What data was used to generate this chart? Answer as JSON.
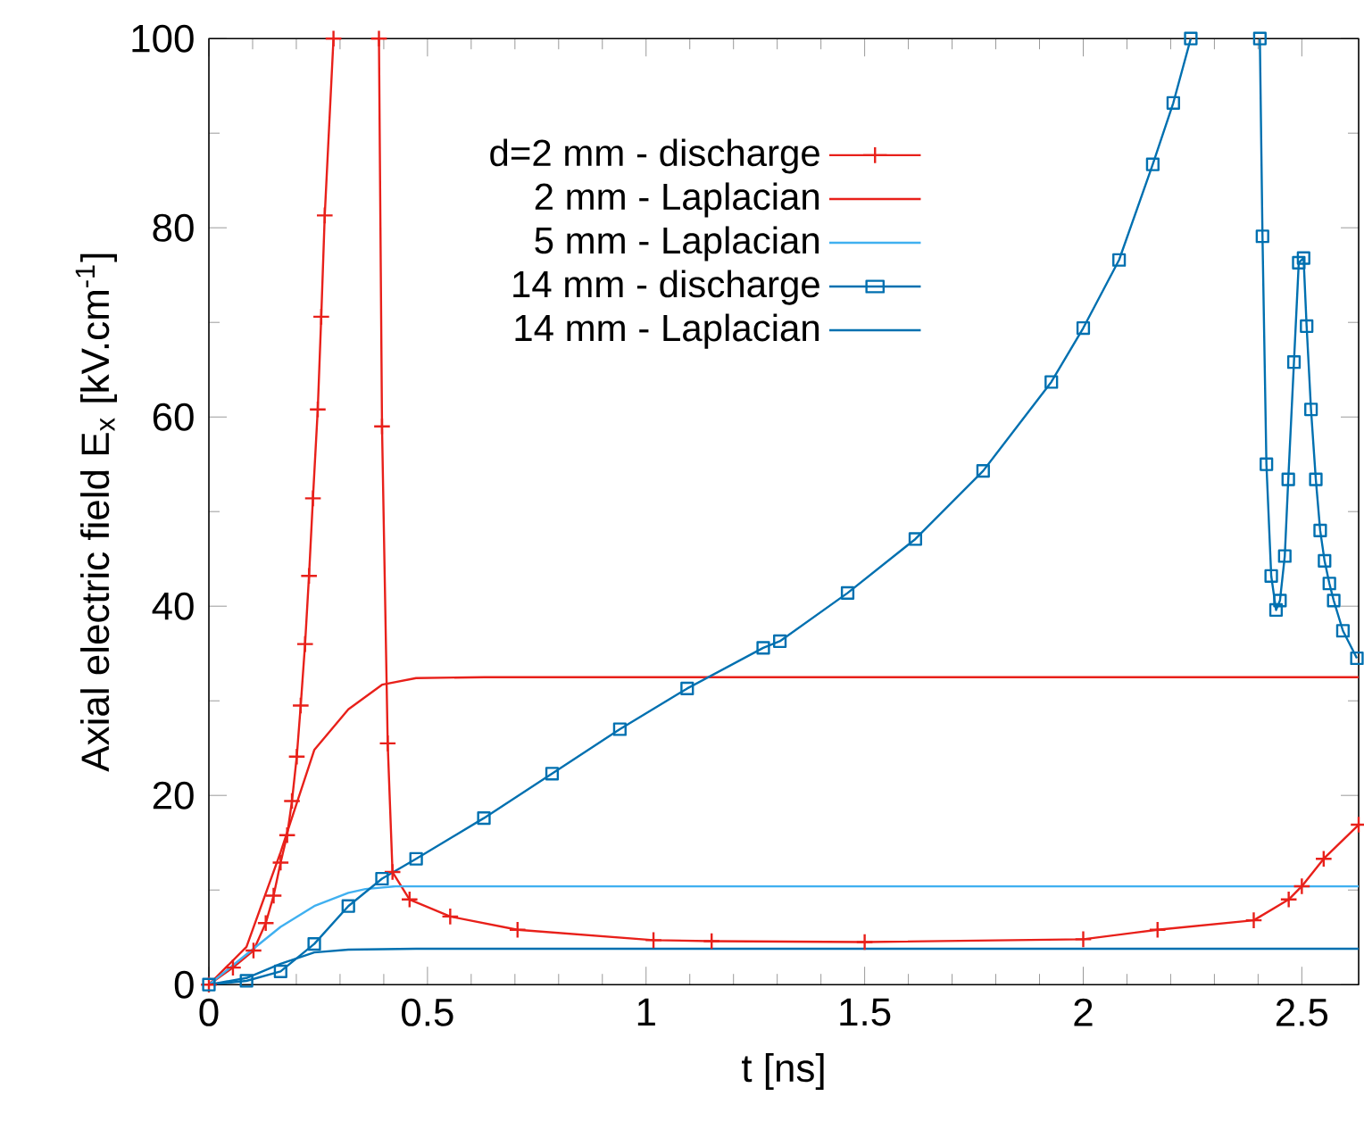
{
  "chart_data": {
    "type": "line",
    "xlabel": "t [ns]",
    "ylabel": "Axial electric field E$_{x}$ [kV.cm$^{-1}$]",
    "xlim": [
      0,
      2.63
    ],
    "ylim": [
      0,
      100
    ],
    "xticks": [
      0,
      0.5,
      1,
      1.5,
      2,
      2.5
    ],
    "yticks": [
      0,
      20,
      40,
      60,
      80,
      100
    ],
    "grid": false,
    "legend": "top",
    "series": [
      {
        "name": "d=2 mm - discharge",
        "color": "#e8201a",
        "marker": "cross",
        "x": [
          0,
          0.055,
          0.102,
          0.13,
          0.148,
          0.164,
          0.179,
          0.19,
          0.201,
          0.21,
          0.22,
          0.229,
          0.238,
          0.249,
          0.257,
          0.265,
          0.285,
          0.3,
          0.389,
          0.396,
          0.409,
          0.42,
          0.459,
          0.552,
          0.706,
          1.017,
          1.15,
          1.5,
          2.0,
          2.17,
          2.39,
          2.47,
          2.5,
          2.55,
          2.63
        ],
        "values": [
          0,
          1.8,
          3.6,
          6.5,
          9.4,
          12.9,
          15.8,
          19.4,
          24.1,
          29.5,
          36,
          43.2,
          51.4,
          60.8,
          70.6,
          81.3,
          100,
          null,
          100,
          59,
          25.5,
          11.9,
          9,
          7.2,
          5.8,
          4.7,
          4.6,
          4.5,
          4.8,
          5.8,
          6.8,
          9,
          10.4,
          13.3,
          16.9
        ]
      },
      {
        "name": "2 mm - Laplacian",
        "color": "#e8201a",
        "x": [
          0,
          0.086,
          0.164,
          0.241,
          0.319,
          0.396,
          0.474,
          0.63,
          2.63
        ],
        "values": [
          0,
          4,
          14,
          24.8,
          29.1,
          31.7,
          32.4,
          32.5,
          32.5
        ]
      },
      {
        "name": "5 mm - Laplacian",
        "color": "#40b0f0",
        "x": [
          0,
          0.086,
          0.164,
          0.241,
          0.319,
          0.358,
          0.427,
          2.63
        ],
        "values": [
          0,
          3.2,
          6.1,
          8.3,
          9.7,
          10.1,
          10.4,
          10.4
        ]
      },
      {
        "name": "14 mm - discharge",
        "color": "#0070b0",
        "marker": "square",
        "x": [
          0,
          0.086,
          0.164,
          0.241,
          0.319,
          0.396,
          0.474,
          0.629,
          0.785,
          0.94,
          1.094,
          1.268,
          1.306,
          1.461,
          1.616,
          1.771,
          1.927,
          2.0,
          2.082,
          2.159,
          2.206,
          2.246,
          2.3,
          2.404,
          2.41,
          2.419,
          2.43,
          2.441,
          2.45,
          2.461,
          2.469,
          2.482,
          2.493,
          2.504,
          2.511,
          2.521,
          2.532,
          2.542,
          2.552,
          2.563,
          2.573,
          2.594,
          2.626
        ],
        "values": [
          0,
          0.4,
          1.4,
          4.3,
          8.3,
          11.2,
          13.3,
          17.6,
          22.3,
          27,
          31.3,
          35.6,
          36.3,
          41.4,
          47.1,
          54.3,
          63.7,
          69.4,
          76.6,
          86.7,
          93.2,
          100,
          null,
          100,
          79.1,
          55,
          43.2,
          39.6,
          40.6,
          45.3,
          53.4,
          65.8,
          76.3,
          76.8,
          69.6,
          60.8,
          53.4,
          48,
          44.8,
          42.4,
          40.6,
          37.4,
          34.5
        ]
      },
      {
        "name": "14 mm - Laplacian",
        "color": "#0070b0",
        "x": [
          0,
          0.086,
          0.164,
          0.241,
          0.319,
          0.474,
          2.63
        ],
        "values": [
          0,
          0.7,
          2.2,
          3.4,
          3.7,
          3.8,
          3.8
        ]
      }
    ]
  }
}
